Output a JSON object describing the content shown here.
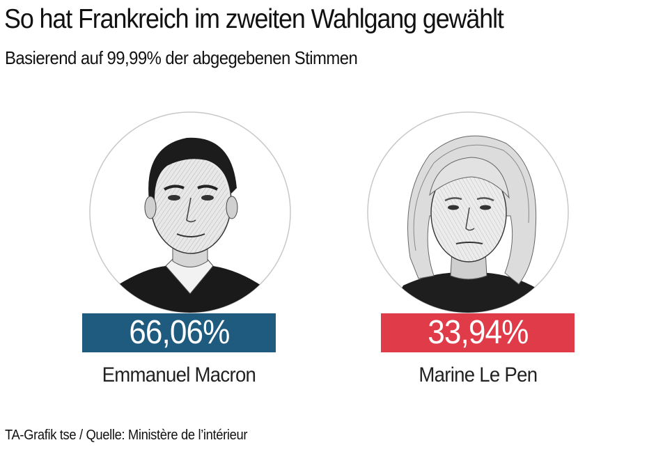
{
  "title": "So hat Frankreich im zweiten Wahlgang gewählt",
  "subtitle": "Basierend auf 99,99% der abgegebenen Stimmen",
  "source": "TA-Grafik tse / Quelle: Ministère de l’intérieur",
  "chart_data": {
    "type": "bar",
    "categories": [
      "Emmanuel Macron",
      "Marine Le Pen"
    ],
    "values": [
      66.06,
      33.94
    ],
    "value_labels": [
      "66,06%",
      "33,94%"
    ],
    "colors": [
      "#1f5a7f",
      "#e03b48"
    ],
    "unit": "%"
  },
  "candidates": [
    {
      "name": "Emmanuel Macron",
      "share_label": "66,06%",
      "share": 66.06,
      "color": "#1f5a7f",
      "icon": "macron-portrait-icon"
    },
    {
      "name": "Marine Le Pen",
      "share_label": "33,94%",
      "share": 33.94,
      "color": "#e03b48",
      "icon": "le-pen-portrait-icon"
    }
  ]
}
